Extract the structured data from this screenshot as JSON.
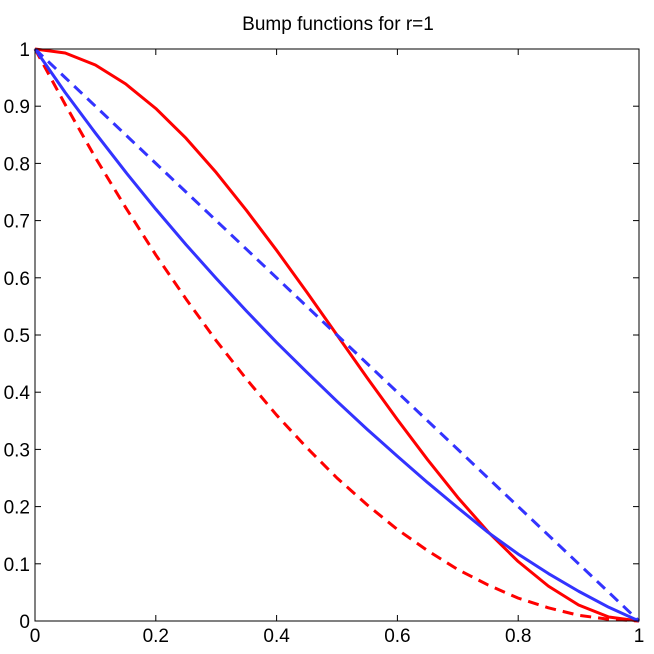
{
  "chart_data": {
    "type": "line",
    "title": "Bump functions for r=1",
    "xlabel": "",
    "ylabel": "",
    "xlim": [
      0,
      1
    ],
    "ylim": [
      0,
      1
    ],
    "x_ticks": [
      0,
      0.2,
      0.4,
      0.6,
      0.8,
      1
    ],
    "x_tick_labels": [
      "0",
      "0.2",
      "0.4",
      "0.6",
      "0.8",
      "1"
    ],
    "y_ticks": [
      0,
      0.1,
      0.2,
      0.3,
      0.4,
      0.5,
      0.6,
      0.7,
      0.8,
      0.9,
      1
    ],
    "y_tick_labels": [
      "0",
      "0.1",
      "0.2",
      "0.3",
      "0.4",
      "0.5",
      "0.6",
      "0.7",
      "0.8",
      "0.9",
      "1"
    ],
    "grid": false,
    "legend": "none",
    "x": [
      0,
      0.05,
      0.1,
      0.15,
      0.2,
      0.25,
      0.3,
      0.35,
      0.4,
      0.45,
      0.5,
      0.55,
      0.6,
      0.65,
      0.7,
      0.75,
      0.8,
      0.85,
      0.9,
      0.95,
      1
    ],
    "series": [
      {
        "color": "#ff0000",
        "style": "solid",
        "values": [
          1,
          0.993,
          0.972,
          0.939,
          0.896,
          0.844,
          0.784,
          0.718,
          0.648,
          0.575,
          0.5,
          0.425,
          0.352,
          0.282,
          0.216,
          0.156,
          0.104,
          0.061,
          0.028,
          0.007,
          0
        ]
      },
      {
        "color": "#ff0000",
        "style": "dashed",
        "values": [
          1,
          0.903,
          0.81,
          0.723,
          0.64,
          0.563,
          0.49,
          0.423,
          0.36,
          0.303,
          0.25,
          0.203,
          0.16,
          0.123,
          0.09,
          0.063,
          0.04,
          0.023,
          0.01,
          0.003,
          0
        ]
      },
      {
        "color": "#3333ff",
        "style": "solid",
        "values": [
          1,
          0.924,
          0.853,
          0.785,
          0.72,
          0.658,
          0.599,
          0.542,
          0.487,
          0.435,
          0.384,
          0.335,
          0.288,
          0.242,
          0.198,
          0.155,
          0.117,
          0.083,
          0.052,
          0.024,
          0
        ]
      },
      {
        "color": "#3333ff",
        "style": "dashed",
        "values": [
          1,
          0.95,
          0.9,
          0.85,
          0.8,
          0.75,
          0.7,
          0.65,
          0.6,
          0.55,
          0.5,
          0.45,
          0.4,
          0.35,
          0.3,
          0.25,
          0.2,
          0.15,
          0.1,
          0.05,
          0
        ]
      }
    ]
  }
}
